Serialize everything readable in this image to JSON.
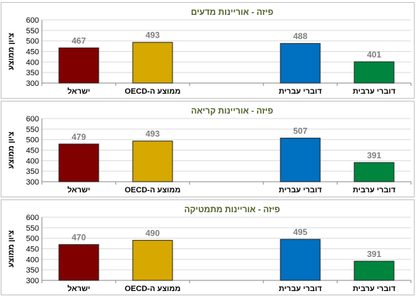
{
  "chart_data": [
    {
      "type": "bar",
      "title": "פיזה - אוריינות מדעים",
      "ylabel": "ציון ממוצע",
      "ylim": [
        300,
        600
      ],
      "yticks": [
        300,
        350,
        400,
        450,
        500,
        550,
        600
      ],
      "categories": [
        "ישראל",
        "ממוצע ה-OECD",
        "",
        "דוברי עברית",
        "דוברי ערבית"
      ],
      "values": [
        467,
        493,
        null,
        488,
        401
      ],
      "grid": true
    },
    {
      "type": "bar",
      "title": "פיזה - אוריינות קריאה",
      "ylabel": "ציון ממוצע",
      "ylim": [
        300,
        600
      ],
      "yticks": [
        300,
        350,
        400,
        450,
        500,
        550,
        600
      ],
      "categories": [
        "ישראל",
        "ממוצע ה-OECD",
        "",
        "דוברי עברית",
        "דוברי ערבית"
      ],
      "values": [
        479,
        493,
        null,
        507,
        391
      ],
      "grid": true
    },
    {
      "type": "bar",
      "title": "פיזה - אוריינות מתמטיקה",
      "ylabel": "ציון ממוצע",
      "ylim": [
        300,
        600
      ],
      "yticks": [
        300,
        350,
        400,
        450,
        500,
        550,
        600
      ],
      "categories": [
        "ישראל",
        "ממוצע ה-OECD",
        "",
        "דוברי עברית",
        "דוברי ערבית"
      ],
      "values": [
        470,
        490,
        null,
        495,
        391
      ],
      "grid": true
    }
  ],
  "colors": {
    "bars": [
      "#800000",
      "#d6a800",
      "#ffffff",
      "#0070c0",
      "#00853e"
    ],
    "title": "#4f6228",
    "value_label": "#7f7f7f",
    "axis_text": "#000000",
    "grid": "#d9d9d9"
  }
}
